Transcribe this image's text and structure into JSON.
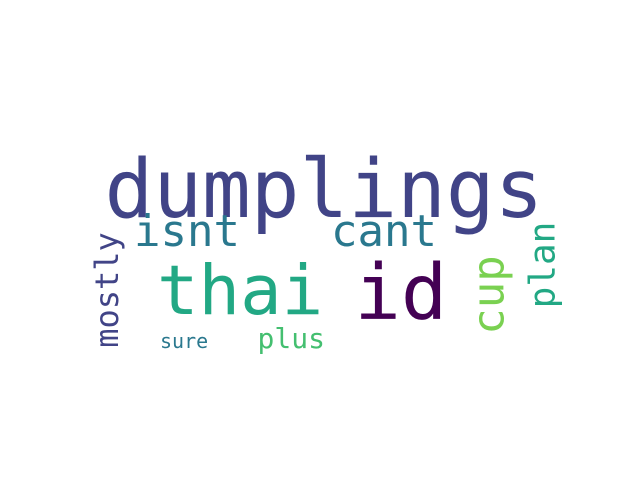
{
  "words": [
    {
      "id": "dumplings",
      "text": "dumplings",
      "color": "#414487"
    },
    {
      "id": "thai",
      "text": "thai",
      "color": "#22a884"
    },
    {
      "id": "id",
      "text": "id",
      "color": "#440154"
    },
    {
      "id": "cant",
      "text": "cant",
      "color": "#2a788e"
    },
    {
      "id": "isnt",
      "text": "isnt",
      "color": "#2a788e"
    },
    {
      "id": "cup",
      "text": "cup",
      "color": "#7ad151"
    },
    {
      "id": "plan",
      "text": "plan",
      "color": "#22a884"
    },
    {
      "id": "mostly",
      "text": "mostly",
      "color": "#414487"
    },
    {
      "id": "plus",
      "text": "plus",
      "color": "#44bf70"
    },
    {
      "id": "sure",
      "text": "sure",
      "color": "#2a788e"
    }
  ]
}
